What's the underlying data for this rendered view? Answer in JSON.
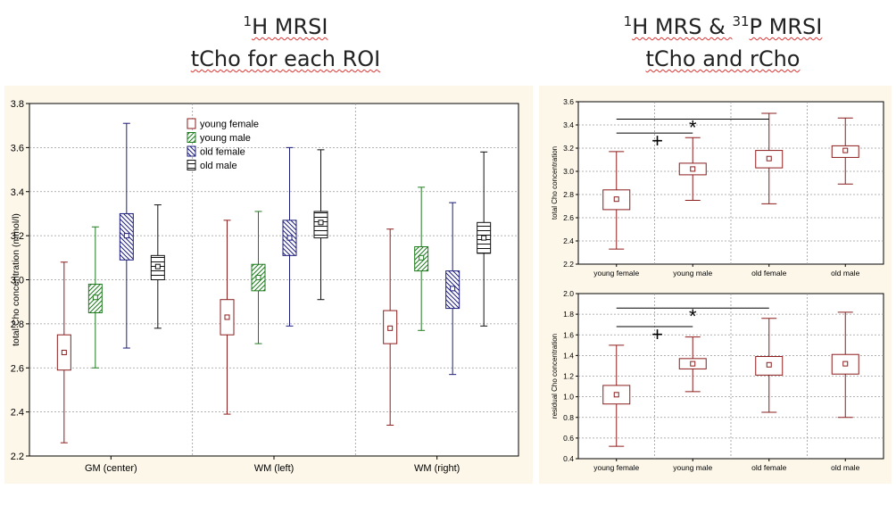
{
  "titles": {
    "left": {
      "sup": "1",
      "line1": "H MRSI",
      "line2": "tCho for each ROI"
    },
    "right": {
      "sup1": "1",
      "part1": "H MRS & ",
      "sup2": "31",
      "part2": "P MRSI",
      "line2": "tCho and rCho"
    }
  },
  "colors": {
    "young_female": "#8b1c1c",
    "young_male": "#1e7a1e",
    "old_female": "#1c1c7a",
    "old_male": "#111111",
    "grid": "#9a9a9a",
    "panel_bg": "#fdf7ea"
  },
  "chart_data": [
    {
      "type": "box",
      "title": "tCho for each ROI",
      "ylabel": "total Cho concentration (mmol/l)",
      "xlabel": "",
      "ylim": [
        2.2,
        3.8
      ],
      "yticks": [
        "2.2",
        "2.4",
        "2.6",
        "2.8",
        "3.0",
        "3.2",
        "3.4",
        "3.6",
        "3.8"
      ],
      "categories": [
        "GM  (center)",
        "WM  (left)",
        "WM  (right)"
      ],
      "legend": {
        "position": "top-center",
        "entries": [
          "young female",
          "young male",
          "old female",
          "old male"
        ]
      },
      "series": [
        {
          "name": "young female",
          "boxes": [
            {
              "min": 2.26,
              "q1": 2.59,
              "median": 2.67,
              "q3": 2.75,
              "max": 3.08
            },
            {
              "min": 2.39,
              "q1": 2.75,
              "median": 2.83,
              "q3": 2.91,
              "max": 3.27
            },
            {
              "min": 2.34,
              "q1": 2.71,
              "median": 2.78,
              "q3": 2.86,
              "max": 3.23
            }
          ]
        },
        {
          "name": "young male",
          "boxes": [
            {
              "min": 2.6,
              "q1": 2.85,
              "median": 2.92,
              "q3": 2.98,
              "max": 3.24
            },
            {
              "min": 2.71,
              "q1": 2.95,
              "median": 3.01,
              "q3": 3.07,
              "max": 3.31
            },
            {
              "min": 2.77,
              "q1": 3.04,
              "median": 3.1,
              "q3": 3.15,
              "max": 3.42
            }
          ]
        },
        {
          "name": "old female",
          "boxes": [
            {
              "min": 2.69,
              "q1": 3.09,
              "median": 3.2,
              "q3": 3.3,
              "max": 3.71
            },
            {
              "min": 2.79,
              "q1": 3.11,
              "median": 3.19,
              "q3": 3.27,
              "max": 3.6
            },
            {
              "min": 2.57,
              "q1": 2.87,
              "median": 2.96,
              "q3": 3.04,
              "max": 3.35
            }
          ]
        },
        {
          "name": "old male",
          "boxes": [
            {
              "min": 2.78,
              "q1": 3.0,
              "median": 3.06,
              "q3": 3.11,
              "max": 3.34
            },
            {
              "min": 2.91,
              "q1": 3.19,
              "median": 3.26,
              "q3": 3.31,
              "max": 3.59
            },
            {
              "min": 2.79,
              "q1": 3.12,
              "median": 3.19,
              "q3": 3.26,
              "max": 3.58
            }
          ]
        }
      ]
    },
    {
      "type": "box",
      "title": "tCho",
      "ylabel": "total Cho concentration",
      "ylim": [
        2.2,
        3.6
      ],
      "yticks": [
        "2.2",
        "2.4",
        "2.6",
        "2.8",
        "3.0",
        "3.2",
        "3.4",
        "3.6"
      ],
      "categories": [
        "young female",
        "young male",
        "old female",
        "old male"
      ],
      "boxes": [
        {
          "min": 2.33,
          "q1": 2.67,
          "median": 2.76,
          "q3": 2.84,
          "max": 3.17
        },
        {
          "min": 2.75,
          "q1": 2.97,
          "median": 3.02,
          "q3": 3.07,
          "max": 3.29
        },
        {
          "min": 2.72,
          "q1": 3.03,
          "median": 3.11,
          "q3": 3.18,
          "max": 3.5
        },
        {
          "min": 2.89,
          "q1": 3.12,
          "median": 3.18,
          "q3": 3.22,
          "max": 3.46
        }
      ],
      "annotations": [
        {
          "label": "*",
          "from": "young female",
          "to": "old female",
          "y": 3.45
        },
        {
          "label": "+",
          "from": "young female",
          "to": "young male",
          "y": 3.33
        }
      ]
    },
    {
      "type": "box",
      "title": "rCho",
      "ylabel": "residual Cho concentration",
      "ylim": [
        0.4,
        2.0
      ],
      "yticks": [
        "0.4",
        "0.6",
        "0.8",
        "1.0",
        "1.2",
        "1.4",
        "1.6",
        "1.8",
        "2.0"
      ],
      "categories": [
        "young female",
        "young male",
        "old female",
        "old male"
      ],
      "boxes": [
        {
          "min": 0.52,
          "q1": 0.93,
          "median": 1.02,
          "q3": 1.11,
          "max": 1.5
        },
        {
          "min": 1.05,
          "q1": 1.27,
          "median": 1.32,
          "q3": 1.37,
          "max": 1.58
        },
        {
          "min": 0.85,
          "q1": 1.21,
          "median": 1.31,
          "q3": 1.39,
          "max": 1.76
        },
        {
          "min": 0.8,
          "q1": 1.22,
          "median": 1.32,
          "q3": 1.41,
          "max": 1.82
        }
      ],
      "annotations": [
        {
          "label": "*",
          "from": "young female",
          "to": "old female",
          "y": 1.86
        },
        {
          "label": "+",
          "from": "young female",
          "to": "young male",
          "y": 1.68
        }
      ]
    }
  ]
}
